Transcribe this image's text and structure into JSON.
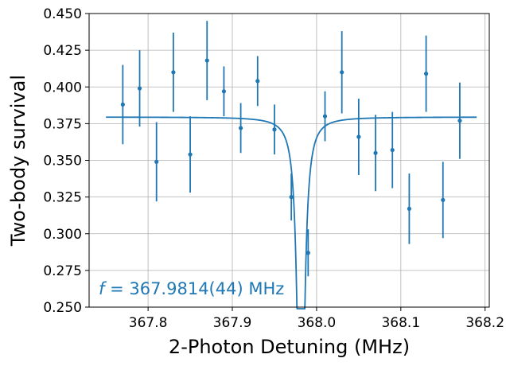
{
  "chart_data": {
    "type": "scatter",
    "title": "",
    "xlabel": "2-Photon Detuning (MHz)",
    "ylabel": "Two-body survival",
    "xlim": [
      367.73,
      368.205
    ],
    "ylim": [
      0.25,
      0.45
    ],
    "xticks": [
      "367.8",
      "367.9",
      "368.0",
      "368.1",
      "368.2"
    ],
    "xtick_values": [
      367.8,
      367.9,
      368.0,
      368.1,
      368.2
    ],
    "yticks": [
      "0.250",
      "0.275",
      "0.300",
      "0.325",
      "0.350",
      "0.375",
      "0.400",
      "0.425",
      "0.450"
    ],
    "ytick_values": [
      0.25,
      0.275,
      0.3,
      0.325,
      0.35,
      0.375,
      0.4,
      0.425,
      0.45
    ],
    "grid": true,
    "color": "#1f77b4",
    "series": [
      {
        "type": "errorbar",
        "points": [
          {
            "x": 367.77,
            "y": 0.388,
            "err": 0.027
          },
          {
            "x": 367.79,
            "y": 0.399,
            "err": 0.026
          },
          {
            "x": 367.81,
            "y": 0.349,
            "err": 0.027
          },
          {
            "x": 367.83,
            "y": 0.41,
            "err": 0.027
          },
          {
            "x": 367.85,
            "y": 0.354,
            "err": 0.026
          },
          {
            "x": 367.87,
            "y": 0.418,
            "err": 0.027
          },
          {
            "x": 367.89,
            "y": 0.397,
            "err": 0.017
          },
          {
            "x": 367.91,
            "y": 0.372,
            "err": 0.017
          },
          {
            "x": 367.93,
            "y": 0.404,
            "err": 0.017
          },
          {
            "x": 367.95,
            "y": 0.371,
            "err": 0.017
          },
          {
            "x": 367.97,
            "y": 0.325,
            "err": 0.016
          },
          {
            "x": 367.99,
            "y": 0.287,
            "err": 0.016
          },
          {
            "x": 368.01,
            "y": 0.38,
            "err": 0.017
          },
          {
            "x": 368.03,
            "y": 0.41,
            "err": 0.028
          },
          {
            "x": 368.05,
            "y": 0.366,
            "err": 0.026
          },
          {
            "x": 368.07,
            "y": 0.355,
            "err": 0.026
          },
          {
            "x": 368.09,
            "y": 0.357,
            "err": 0.026
          },
          {
            "x": 368.11,
            "y": 0.317,
            "err": 0.024
          },
          {
            "x": 368.13,
            "y": 0.409,
            "err": 0.026
          },
          {
            "x": 368.15,
            "y": 0.323,
            "err": 0.026
          },
          {
            "x": 368.17,
            "y": 0.377,
            "err": 0.026
          }
        ]
      },
      {
        "type": "fit",
        "model": "lorentzian",
        "baseline": 0.3795,
        "depth": 0.295,
        "center": 367.9814,
        "hwhm": 0.0042,
        "x_range": [
          367.75,
          368.19
        ]
      }
    ],
    "annotation": {
      "prefix": "f",
      "text": " = 367.9814(44) MHz",
      "position": "bottom-left"
    }
  }
}
